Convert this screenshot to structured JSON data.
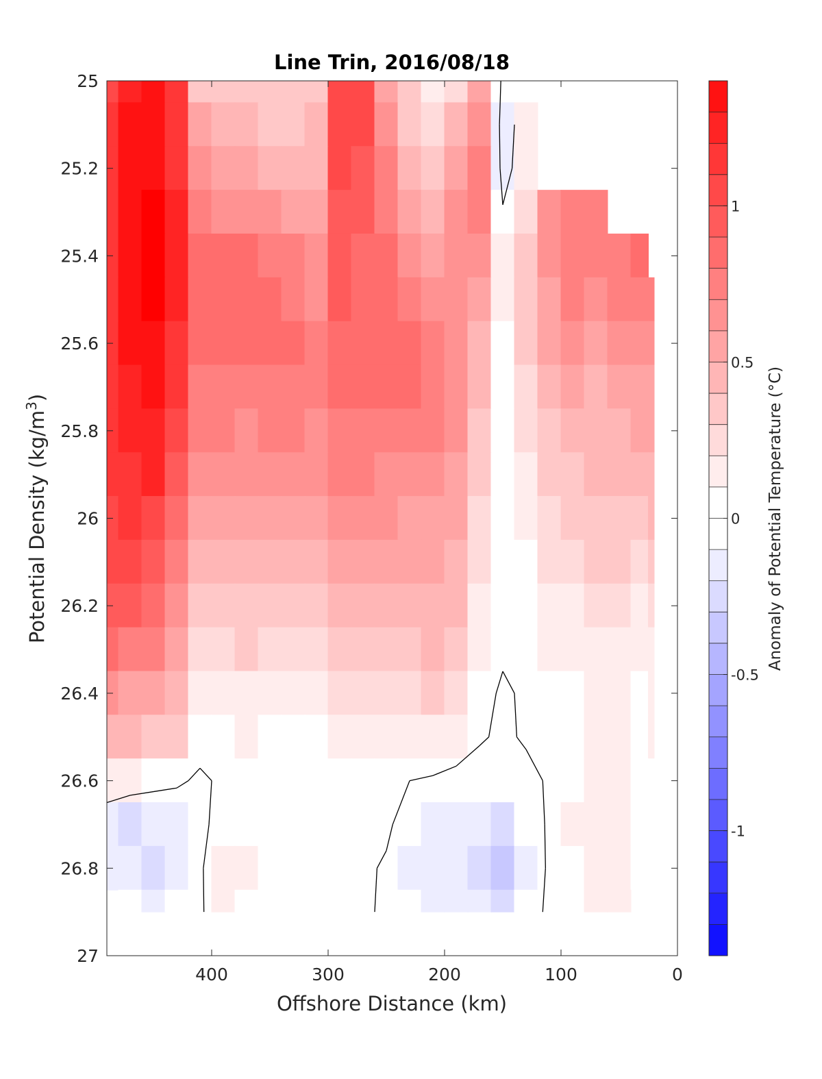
{
  "chart_data": {
    "type": "heatmap",
    "title": "Line Trin, 2016/08/18",
    "xlabel": "Offshore Distance (km)",
    "ylabel_main": "Potential Density (kg/m",
    "ylabel_sup": "3",
    "ylabel_close": ")",
    "xlim": [
      490,
      0
    ],
    "ylim": [
      27,
      25
    ],
    "x_reversed": true,
    "y_reversed": true,
    "x_ticks": [
      400,
      300,
      200,
      100,
      0
    ],
    "x_tick_labels": [
      "400",
      "300",
      "200",
      "100",
      "0"
    ],
    "y_ticks": [
      25,
      25.2,
      25.4,
      25.6,
      25.8,
      26,
      26.2,
      26.4,
      26.6,
      26.8,
      27
    ],
    "y_tick_labels": [
      "25",
      "25.2",
      "25.4",
      "25.6",
      "25.8",
      "26",
      "26.2",
      "26.4",
      "26.6",
      "26.8",
      "27"
    ],
    "colorbar": {
      "label": "Anomaly of Potential Temperature (°C)",
      "range": [
        -1.4,
        1.4
      ],
      "step": 0.1,
      "ticks": [
        1,
        0.5,
        0,
        -0.5,
        -1
      ],
      "tick_labels": [
        "1",
        "0.5",
        "0",
        "-0.5",
        "-1"
      ],
      "colors": {
        "positive": "#ff0000",
        "neutral": "#ffffff",
        "negative": "#0000ff"
      }
    },
    "grid": false,
    "zero_contour": true,
    "x": [
      490,
      470,
      450,
      430,
      410,
      390,
      370,
      350,
      330,
      310,
      290,
      270,
      250,
      230,
      210,
      190,
      170,
      150,
      130,
      110,
      90,
      70,
      50,
      30,
      20
    ],
    "y": [
      25.0,
      25.1,
      25.2,
      25.3,
      25.4,
      25.5,
      25.6,
      25.7,
      25.8,
      25.9,
      26.0,
      26.1,
      26.2,
      26.3,
      26.4,
      26.5,
      26.6,
      26.7,
      26.8,
      26.9
    ],
    "values": [
      [
        1.05,
        1.25,
        1.35,
        1.1,
        0.35,
        0.3,
        0.35,
        0.3,
        0.3,
        0.35,
        1.05,
        1.05,
        0.5,
        0.3,
        0.15,
        0.25,
        0.55,
        -0.05,
        null,
        null,
        null,
        null,
        null,
        null,
        null
      ],
      [
        1.1,
        1.3,
        1.35,
        1.1,
        0.5,
        0.4,
        0.4,
        0.35,
        0.35,
        0.4,
        1.0,
        1.0,
        0.6,
        0.35,
        0.2,
        0.45,
        0.6,
        -0.1,
        0.1,
        null,
        null,
        null,
        null,
        null,
        null
      ],
      [
        1.1,
        1.3,
        1.35,
        1.15,
        0.6,
        0.5,
        0.5,
        0.45,
        0.45,
        0.45,
        1.0,
        0.95,
        0.7,
        0.45,
        0.3,
        0.55,
        0.75,
        -0.1,
        0.15,
        null,
        null,
        null,
        null,
        null,
        null
      ],
      [
        1.15,
        1.3,
        1.4,
        1.2,
        0.75,
        0.65,
        0.65,
        0.6,
        0.55,
        0.55,
        0.95,
        0.9,
        0.75,
        0.55,
        0.4,
        0.6,
        0.7,
        0.02,
        0.25,
        0.6,
        0.7,
        0.75,
        null,
        null,
        null
      ],
      [
        1.15,
        1.3,
        1.4,
        1.25,
        0.85,
        0.8,
        0.8,
        0.75,
        0.7,
        0.6,
        0.9,
        0.85,
        0.8,
        0.65,
        0.5,
        0.6,
        0.6,
        0.1,
        0.35,
        0.6,
        0.75,
        0.7,
        0.75,
        0.8,
        null
      ],
      [
        1.15,
        1.3,
        1.4,
        1.2,
        0.85,
        0.85,
        0.85,
        0.8,
        0.75,
        0.65,
        0.9,
        0.85,
        0.85,
        0.75,
        0.6,
        0.6,
        0.5,
        0.1,
        0.35,
        0.55,
        0.7,
        0.65,
        0.7,
        0.7,
        0.7
      ],
      [
        1.15,
        1.3,
        1.35,
        1.15,
        0.8,
        0.8,
        0.8,
        0.8,
        0.8,
        0.7,
        0.85,
        0.8,
        0.85,
        0.85,
        0.7,
        0.6,
        0.45,
        0.05,
        0.3,
        0.5,
        0.6,
        0.55,
        0.6,
        0.6,
        0.6
      ],
      [
        1.15,
        1.25,
        1.3,
        1.1,
        0.75,
        0.75,
        0.75,
        0.75,
        0.75,
        0.7,
        0.8,
        0.8,
        0.8,
        0.8,
        0.7,
        0.6,
        0.4,
        0.05,
        0.25,
        0.4,
        0.5,
        0.45,
        0.5,
        0.55,
        0.55
      ],
      [
        1.1,
        1.2,
        1.25,
        1.05,
        0.7,
        0.7,
        0.65,
        0.7,
        0.7,
        0.65,
        0.75,
        0.75,
        0.75,
        0.75,
        0.7,
        0.6,
        0.35,
        0.05,
        0.2,
        0.35,
        0.45,
        0.45,
        0.45,
        0.5,
        0.5
      ],
      [
        1.1,
        1.15,
        1.2,
        0.95,
        0.6,
        0.6,
        0.6,
        0.6,
        0.6,
        0.6,
        0.7,
        0.7,
        0.65,
        0.65,
        0.65,
        0.55,
        0.3,
        0.05,
        0.15,
        0.3,
        0.35,
        0.4,
        0.4,
        0.4,
        0.45
      ],
      [
        1.05,
        1.1,
        1.05,
        0.85,
        0.5,
        0.5,
        0.5,
        0.5,
        0.5,
        0.5,
        0.6,
        0.6,
        0.6,
        0.55,
        0.55,
        0.5,
        0.25,
        0.02,
        0.1,
        0.25,
        0.3,
        0.35,
        0.35,
        0.35,
        0.4
      ],
      [
        1.0,
        1.0,
        0.95,
        0.75,
        0.45,
        0.4,
        0.4,
        0.4,
        0.4,
        0.45,
        0.5,
        0.5,
        0.5,
        0.5,
        0.5,
        0.45,
        0.2,
        0.02,
        0.08,
        0.2,
        0.25,
        0.3,
        0.3,
        0.25,
        0.3
      ],
      [
        0.95,
        0.9,
        0.85,
        0.65,
        0.35,
        0.3,
        0.3,
        0.3,
        0.3,
        0.35,
        0.4,
        0.4,
        0.45,
        0.45,
        0.45,
        0.4,
        0.15,
        0.02,
        0.05,
        0.15,
        0.15,
        0.2,
        0.2,
        0.15,
        0.2
      ],
      [
        0.8,
        0.75,
        0.7,
        0.55,
        0.25,
        0.2,
        0.3,
        0.25,
        0.25,
        0.25,
        0.3,
        0.3,
        0.35,
        0.35,
        0.4,
        0.35,
        0.12,
        0.02,
        0.05,
        0.1,
        0.1,
        0.15,
        0.15,
        0.1,
        0.15
      ],
      [
        0.6,
        0.55,
        0.55,
        0.45,
        0.15,
        0.12,
        0.15,
        0.15,
        0.15,
        0.15,
        0.2,
        0.2,
        0.25,
        0.25,
        0.3,
        0.25,
        0.05,
        -0.02,
        0.02,
        0.08,
        0.08,
        0.12,
        0.12,
        0.08,
        0.12
      ],
      [
        0.45,
        0.4,
        0.35,
        0.3,
        0.05,
        0.08,
        0.1,
        0.08,
        0.08,
        0.08,
        0.1,
        0.1,
        0.15,
        0.15,
        0.15,
        0.1,
        0.02,
        -0.03,
        0.02,
        0.05,
        0.08,
        0.1,
        0.1,
        0.05,
        0.1
      ],
      [
        0.15,
        0.1,
        0.05,
        0.02,
        -0.02,
        0.02,
        0.03,
        0.02,
        0.02,
        0.02,
        0.03,
        0.03,
        0.02,
        0.0,
        -0.02,
        -0.05,
        -0.08,
        -0.08,
        -0.05,
        0.02,
        0.08,
        0.1,
        0.1,
        0.05,
        0.08
      ],
      [
        -0.15,
        -0.2,
        -0.15,
        -0.1,
        -0.05,
        0.08,
        0.05,
        0.03,
        0.02,
        0.03,
        0.05,
        0.05,
        0.03,
        -0.08,
        -0.12,
        -0.12,
        -0.18,
        -0.25,
        -0.08,
        0.02,
        0.1,
        0.1,
        0.1,
        0.05,
        0.08
      ],
      [
        -0.18,
        -0.12,
        -0.25,
        -0.1,
        -0.02,
        0.12,
        0.1,
        0.05,
        0.02,
        0.03,
        0.02,
        0.03,
        -0.02,
        -0.1,
        -0.12,
        -0.15,
        -0.2,
        -0.3,
        -0.1,
        0.02,
        0.08,
        0.1,
        0.1,
        0.05,
        0.08
      ],
      [
        null,
        -0.05,
        -0.15,
        -0.08,
        -0.02,
        0.1,
        0.08,
        0.03,
        0.02,
        0.02,
        0.02,
        0.02,
        -0.02,
        -0.05,
        -0.1,
        -0.12,
        -0.15,
        -0.2,
        -0.05,
        0.02,
        0.08,
        0.1,
        0.1,
        null,
        null
      ]
    ]
  }
}
